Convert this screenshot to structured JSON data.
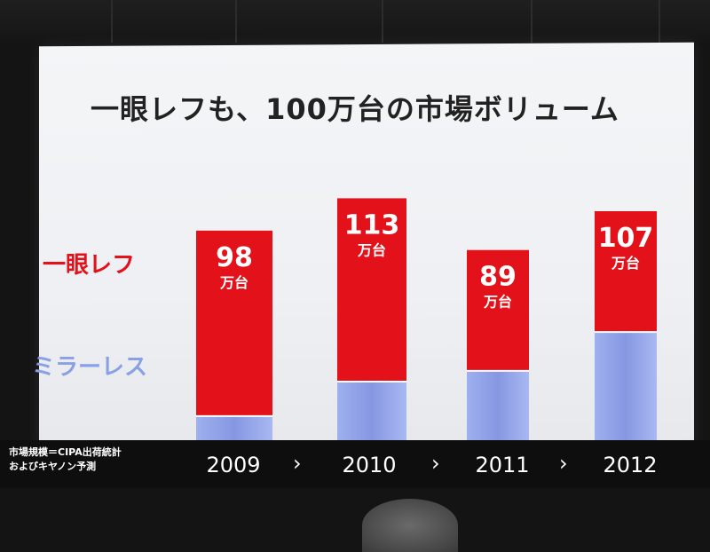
{
  "chart_data": {
    "type": "bar",
    "title": "一眼レフも、100万台の市場ボリューム",
    "categories": [
      "2009",
      "2010",
      "2011",
      "2012"
    ],
    "totals": [
      98,
      113,
      89,
      107
    ],
    "value_labels": [
      "98",
      "113",
      "89",
      "107"
    ],
    "unit_label": "万台",
    "series": [
      {
        "name": "ミラーレス",
        "values": [
          12,
          28,
          33,
          51
        ]
      },
      {
        "name": "一眼レフ",
        "values": [
          86,
          85,
          56,
          56
        ]
      }
    ],
    "ylim": [
      0,
      110
    ],
    "grid": false,
    "arrow_glyph": "›",
    "colors": {
      "dslr": "#e3121a",
      "mirrorless": "#8aa0e6"
    }
  },
  "legend": {
    "dslr": "一眼レフ",
    "mirrorless": "ミラーレス"
  },
  "footnote": {
    "line1": "市場規模＝CIPA出荷統計",
    "line2": "およびキヤノン予測"
  }
}
